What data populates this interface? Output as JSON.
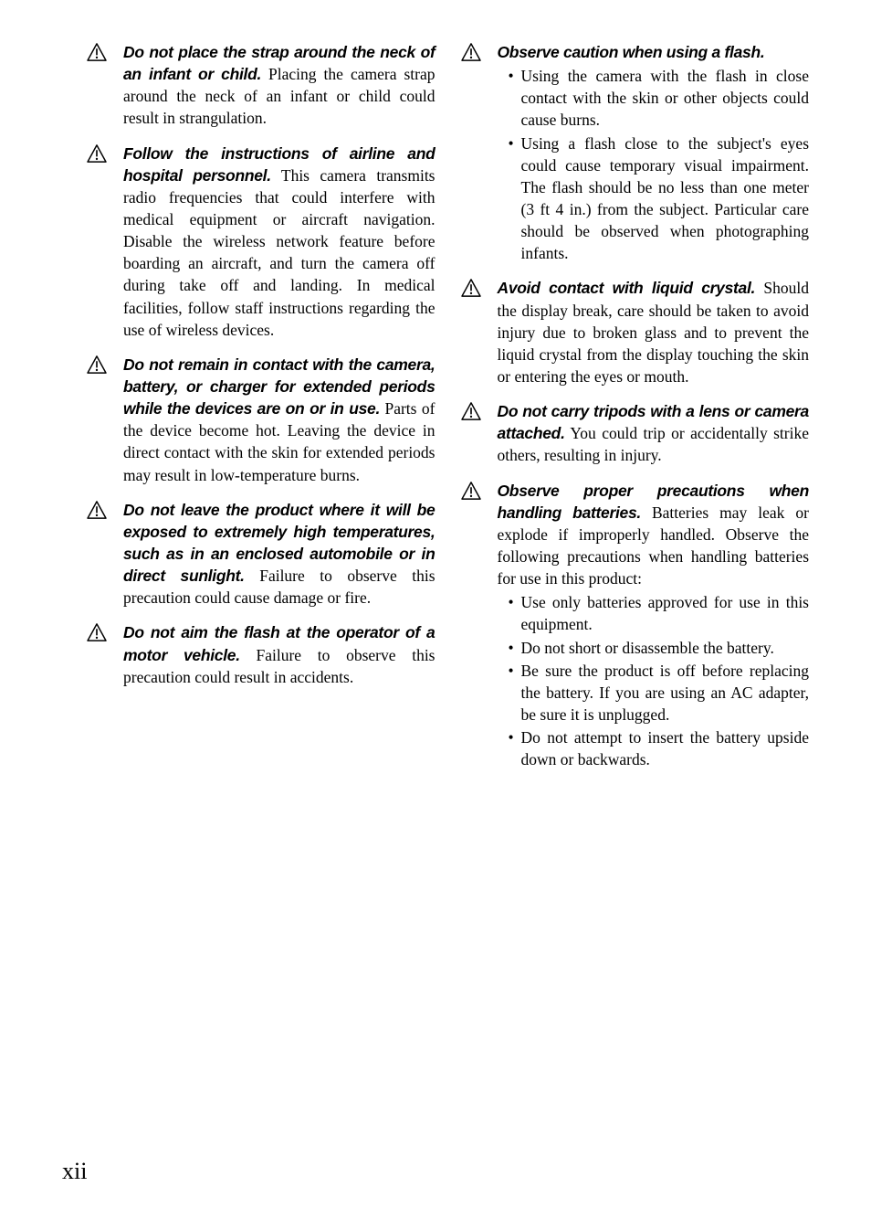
{
  "left": [
    {
      "bold": "Do not place the strap around the neck of an infant or child.",
      "rest": " Placing the camera strap around the neck of an infant or child could result in strangulation."
    },
    {
      "bold": "Follow the instructions of airline and hospital personnel.",
      "rest": " This camera transmits radio frequencies that could interfere with medical equipment or aircraft navigation. Disable the wireless network feature before boarding an aircraft, and turn the camera off during take off and landing. In medical facilities, follow staff instructions regarding the use of wireless devices."
    },
    {
      "bold": "Do not remain in contact with the camera, battery, or charger for extended periods while the devices are on or in use.",
      "rest": " Parts of the device become hot. Leaving the device in direct contact with the skin for extended periods may result in low-temperature burns."
    },
    {
      "bold": "Do not leave the product where it will be exposed to extremely high temperatures, such as in an enclosed automobile or in direct sunlight.",
      "rest": " Failure to observe this precaution could cause damage or fire."
    },
    {
      "bold": "Do not aim the flash at the operator of a motor vehicle.",
      "rest": " Failure to observe this precaution could result in accidents."
    }
  ],
  "right": [
    {
      "bold": "Observe caution when using a flash.",
      "rest": "",
      "bullets": [
        "Using the camera with the flash in close contact with the skin or other objects could cause burns.",
        "Using a flash close to the subject's eyes could cause temporary visual impairment. The flash should be no less than one meter (3 ft 4 in.) from the subject. Particular care should be observed when photographing infants."
      ]
    },
    {
      "bold": "Avoid contact with liquid crystal.",
      "rest": " Should the display break, care should be taken to avoid injury due to broken glass and to prevent the liquid crystal from the display touching the skin or entering the eyes or mouth."
    },
    {
      "bold": "Do not carry tripods with a lens or camera attached.",
      "rest": " You could trip or accidentally strike others, resulting in injury."
    },
    {
      "bold": "Observe proper precautions when handling batteries.",
      "rest": " Batteries may leak or explode if improperly handled. Observe the following precautions when handling batteries for use in this product:",
      "bullets": [
        "Use only batteries approved for use in this equipment.",
        "Do not short or disassemble the battery.",
        "Be sure the product is off before replacing the battery. If you are using an AC adapter, be sure it is unplugged.",
        "Do not attempt to insert the battery upside down or backwards."
      ]
    }
  ],
  "pageNumber": "xii"
}
